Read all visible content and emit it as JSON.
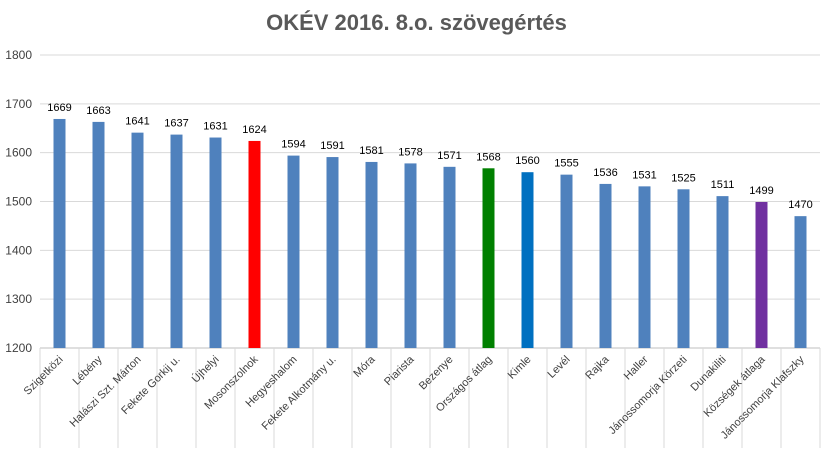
{
  "chart_data": {
    "type": "bar",
    "title": "OKÉV 2016. 8.o. szövegértés",
    "xlabel": "",
    "ylabel": "",
    "ylim": [
      1200,
      1800
    ],
    "yticks": [
      1200,
      1300,
      1400,
      1500,
      1600,
      1700,
      1800
    ],
    "grid": true,
    "legend": "none",
    "categories": [
      "Szigetközi",
      "Lébény",
      "Halászi Szt. Márton",
      "Fekete Gorkij u.",
      "Újhelyi",
      "Mosonszolnok",
      "Hegyeshalom",
      "Fekete Alkotmány u.",
      "Móra",
      "Piarista",
      "Bezenye",
      "Országos átlag",
      "Kimle",
      "Levél",
      "Rajka",
      "Haller",
      "Jánossomorja Körzeti",
      "Dunakiliti",
      "Községek átlaga",
      "Jánossomorja Klafszky"
    ],
    "values": [
      1669,
      1663,
      1641,
      1637,
      1631,
      1624,
      1594,
      1591,
      1581,
      1578,
      1571,
      1568,
      1560,
      1555,
      1536,
      1531,
      1525,
      1511,
      1499,
      1470
    ],
    "colors": [
      "#4F81BD",
      "#4F81BD",
      "#4F81BD",
      "#4F81BD",
      "#4F81BD",
      "#FF0000",
      "#4F81BD",
      "#4F81BD",
      "#4F81BD",
      "#4F81BD",
      "#4F81BD",
      "#008000",
      "#0070C0",
      "#4F81BD",
      "#4F81BD",
      "#4F81BD",
      "#4F81BD",
      "#4F81BD",
      "#7030A0",
      "#4F81BD"
    ]
  }
}
